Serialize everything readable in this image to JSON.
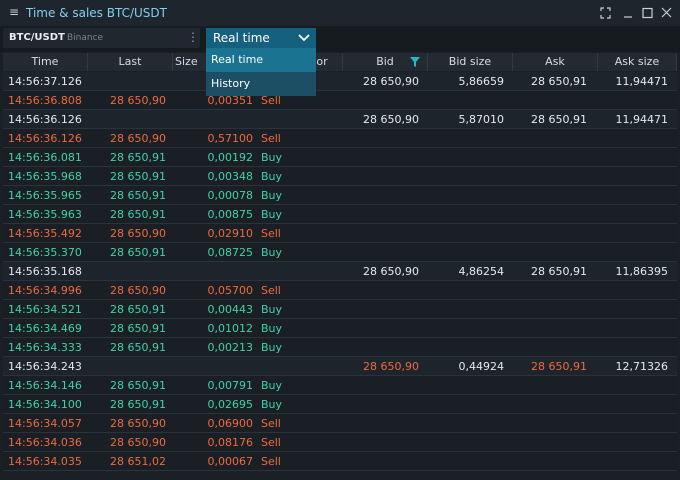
{
  "window": {
    "title": "Time & sales BTC/USDT"
  },
  "toolbar": {
    "symbol": "BTC/USDT",
    "exchange": "Binance",
    "mode": "Real time",
    "options": [
      "Real time",
      "History"
    ]
  },
  "table": {
    "columns": [
      "Time",
      "Last",
      "Size",
      "Aggressor",
      "Bid",
      "Bid size",
      "Ask",
      "Ask size"
    ],
    "rows": [
      {
        "time": "14:56:37.126",
        "bid": "28 650,90",
        "bid_size": "5,86659",
        "ask": "28 650,91",
        "ask_size": "11,94471"
      },
      {
        "time": "14:56:36.808",
        "last": "28 650,90",
        "size": "0,00351",
        "side": "Sell"
      },
      {
        "time": "14:56:36.126",
        "bid": "28 650,90",
        "bid_size": "5,87010",
        "ask": "28 650,91",
        "ask_size": "11,94471"
      },
      {
        "time": "14:56:36.126",
        "last": "28 650,90",
        "size": "0,57100",
        "side": "Sell"
      },
      {
        "time": "14:56:36.081",
        "last": "28 650,91",
        "size": "0,00192",
        "side": "Buy"
      },
      {
        "time": "14:56:35.968",
        "last": "28 650,91",
        "size": "0,00348",
        "side": "Buy"
      },
      {
        "time": "14:56:35.965",
        "last": "28 650,91",
        "size": "0,00078",
        "side": "Buy"
      },
      {
        "time": "14:56:35.963",
        "last": "28 650,91",
        "size": "0,00875",
        "side": "Buy"
      },
      {
        "time": "14:56:35.492",
        "last": "28 650,90",
        "size": "0,02910",
        "side": "Sell"
      },
      {
        "time": "14:56:35.370",
        "last": "28 650,91",
        "size": "0,08725",
        "side": "Buy"
      },
      {
        "time": "14:56:35.168",
        "bid": "28 650,90",
        "bid_size": "4,86254",
        "ask": "28 650,91",
        "ask_size": "11,86395"
      },
      {
        "time": "14:56:34.996",
        "last": "28 650,90",
        "size": "0,05700",
        "side": "Sell"
      },
      {
        "time": "14:56:34.521",
        "last": "28 650,91",
        "size": "0,00443",
        "side": "Buy"
      },
      {
        "time": "14:56:34.469",
        "last": "28 650,91",
        "size": "0,01012",
        "side": "Buy"
      },
      {
        "time": "14:56:34.333",
        "last": "28 650,91",
        "size": "0,00213",
        "side": "Buy"
      },
      {
        "time": "14:56:34.243",
        "bid": "28 650,90",
        "bid_size": "0,44924",
        "ask": "28 650,91",
        "ask_size": "12,71326",
        "color": "#ef6a3c"
      },
      {
        "time": "14:56:34.146",
        "last": "28 650,91",
        "size": "0,00791",
        "side": "Buy"
      },
      {
        "time": "14:56:34.100",
        "last": "28 650,91",
        "size": "0,02695",
        "side": "Buy"
      },
      {
        "time": "14:56:34.057",
        "last": "28 650,90",
        "size": "0,06900",
        "side": "Sell"
      },
      {
        "time": "14:56:34.036",
        "last": "28 650,90",
        "size": "0,08176",
        "side": "Sell"
      },
      {
        "time": "14:56:34.035",
        "last": "28 651,02",
        "size": "0,00067",
        "side": "Sell"
      }
    ]
  }
}
